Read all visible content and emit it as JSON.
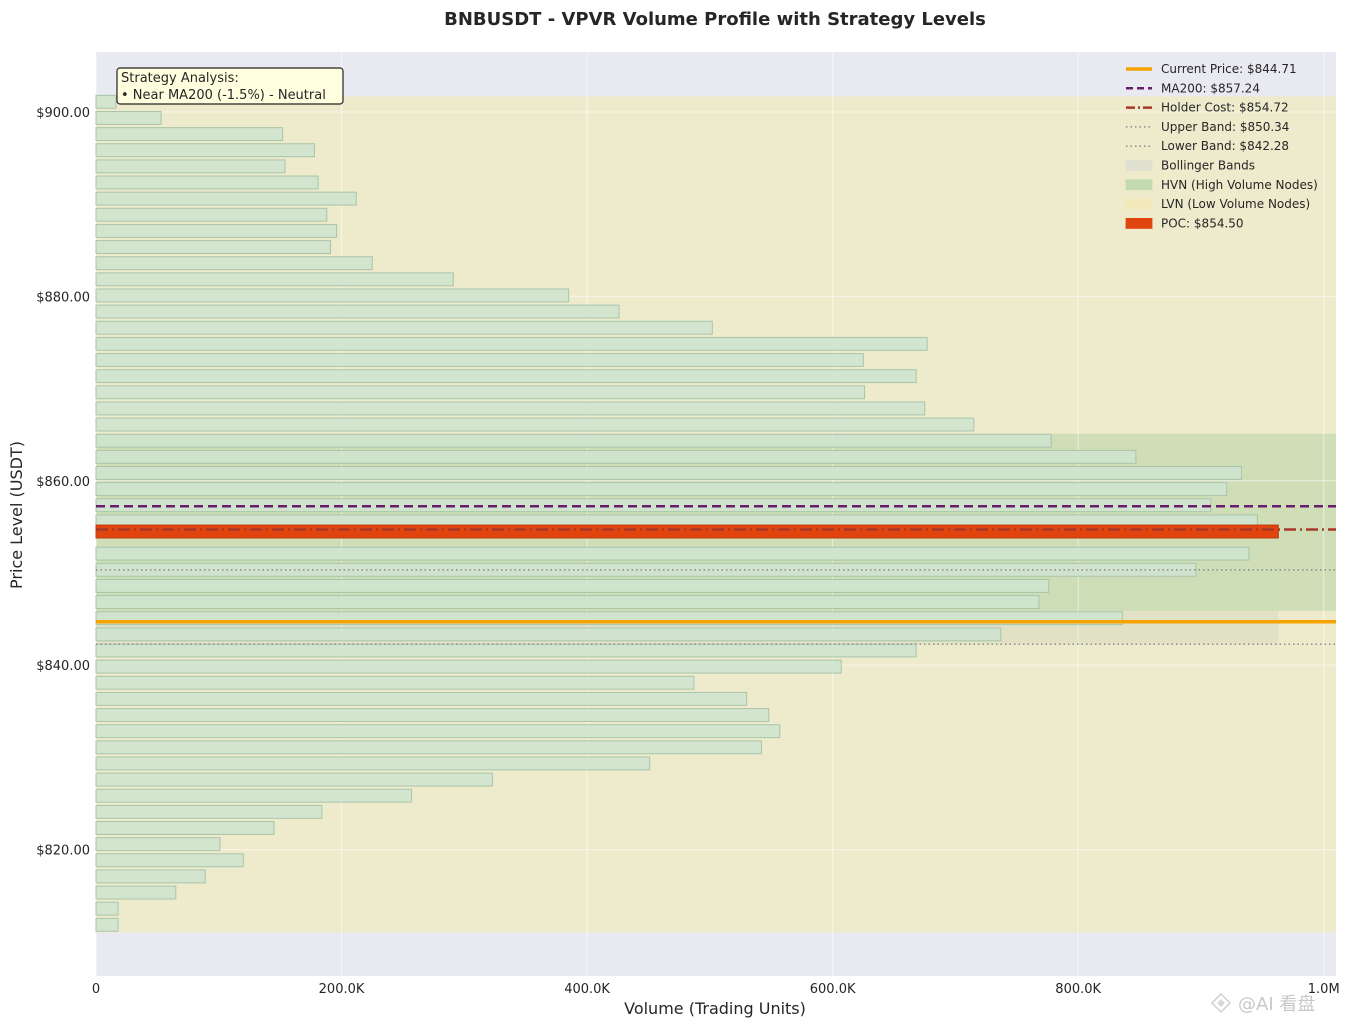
{
  "chart_data": {
    "type": "bar",
    "orientation": "horizontal",
    "title": "BNBUSDT - VPVR Volume Profile with Strategy Levels",
    "xlabel": "Volume (Trading Units)",
    "ylabel": "Price Level (USDT)",
    "xlim": [
      0,
      1010000
    ],
    "ylim": [
      806.3,
      906.5
    ],
    "x_ticks": [
      {
        "value": 0,
        "label": "0"
      },
      {
        "value": 200000,
        "label": "200.0K"
      },
      {
        "value": 400000,
        "label": "400.0K"
      },
      {
        "value": 600000,
        "label": "600.0K"
      },
      {
        "value": 800000,
        "label": "800.0K"
      },
      {
        "value": 1000000,
        "label": "1.0M"
      }
    ],
    "y_ticks": [
      {
        "value": 900,
        "label": "$900.00"
      },
      {
        "value": 880,
        "label": "$880.00"
      },
      {
        "value": 860,
        "label": "$860.00"
      },
      {
        "value": 840,
        "label": "$840.00"
      },
      {
        "value": 820,
        "label": "$820.00"
      }
    ],
    "grid": true,
    "bin_height": 1.75,
    "bins": [
      {
        "price": 901.1,
        "volume": 0
      },
      {
        "price": 899.35,
        "volume": 53000
      },
      {
        "price": 897.6,
        "volume": 152000
      },
      {
        "price": 895.85,
        "volume": 178000
      },
      {
        "price": 894.1,
        "volume": 154000
      },
      {
        "price": 892.35,
        "volume": 181000
      },
      {
        "price": 890.6,
        "volume": 212000
      },
      {
        "price": 888.85,
        "volume": 188000
      },
      {
        "price": 887.1,
        "volume": 196000
      },
      {
        "price": 885.35,
        "volume": 191000
      },
      {
        "price": 883.6,
        "volume": 225000
      },
      {
        "price": 881.85,
        "volume": 291000
      },
      {
        "price": 880.1,
        "volume": 385000
      },
      {
        "price": 878.35,
        "volume": 426000
      },
      {
        "price": 876.6,
        "volume": 502000
      },
      {
        "price": 874.85,
        "volume": 677000
      },
      {
        "price": 873.1,
        "volume": 625000
      },
      {
        "price": 871.35,
        "volume": 668000
      },
      {
        "price": 869.6,
        "volume": 626000
      },
      {
        "price": 867.85,
        "volume": 675000
      },
      {
        "price": 866.1,
        "volume": 715000
      },
      {
        "price": 864.35,
        "volume": 778000
      },
      {
        "price": 862.6,
        "volume": 847000
      },
      {
        "price": 860.85,
        "volume": 933000
      },
      {
        "price": 859.1,
        "volume": 921000
      },
      {
        "price": 857.35,
        "volume": 908000
      },
      {
        "price": 855.6,
        "volume": 946000
      },
      {
        "price": 854.5,
        "volume": 963000,
        "poc": true
      },
      {
        "price": 852.1,
        "volume": 939000
      },
      {
        "price": 850.35,
        "volume": 896000
      },
      {
        "price": 848.6,
        "volume": 776000
      },
      {
        "price": 846.85,
        "volume": 768000
      },
      {
        "price": 845.1,
        "volume": 836000
      },
      {
        "price": 843.35,
        "volume": 737000
      },
      {
        "price": 841.6,
        "volume": 668000
      },
      {
        "price": 839.85,
        "volume": 607000
      },
      {
        "price": 838.1,
        "volume": 487000
      },
      {
        "price": 836.35,
        "volume": 530000
      },
      {
        "price": 834.6,
        "volume": 548000
      },
      {
        "price": 832.85,
        "volume": 557000
      },
      {
        "price": 831.1,
        "volume": 542000
      },
      {
        "price": 829.35,
        "volume": 451000
      },
      {
        "price": 827.6,
        "volume": 323000
      },
      {
        "price": 825.85,
        "volume": 257000
      },
      {
        "price": 824.1,
        "volume": 184000
      },
      {
        "price": 822.35,
        "volume": 145000
      },
      {
        "price": 820.6,
        "volume": 101000
      },
      {
        "price": 818.85,
        "volume": 120000
      },
      {
        "price": 817.1,
        "volume": 89000
      },
      {
        "price": 815.35,
        "volume": 65000
      },
      {
        "price": 813.6,
        "volume": 18000
      },
      {
        "price": 811.85,
        "volume": 18000
      }
    ],
    "lvn_zone": [
      811.0,
      901.7
    ],
    "hvn_zone": [
      845.9,
      865.1
    ],
    "bollinger_bands": {
      "lower": 842.28,
      "upper": 850.34
    },
    "levels": {
      "current_price": 844.71,
      "ma200": 857.24,
      "holder_cost": 854.72,
      "upper_band": 850.34,
      "lower_band": 842.28,
      "poc": 854.5
    },
    "legend": {
      "placement": "top-right",
      "entries": [
        {
          "label": "Current Price: $844.71",
          "style": "solid",
          "color": "#f5a300"
        },
        {
          "label": "MA200: $857.24",
          "style": "dashed",
          "color": "#6a1b6e"
        },
        {
          "label": "Holder Cost: $854.72",
          "style": "dashdot",
          "color": "#a8392a"
        },
        {
          "label": "Upper Band: $850.34",
          "style": "dotted",
          "color": "#8a8a8a"
        },
        {
          "label": "Lower Band: $842.28",
          "style": "dotted",
          "color": "#8a8a8a"
        },
        {
          "label": "Bollinger Bands",
          "style": "patch",
          "color": "#dfe0cf"
        },
        {
          "label": "HVN (High Volume Nodes)",
          "style": "patch",
          "color": "#c3dbae"
        },
        {
          "label": "LVN (Low Volume Nodes)",
          "style": "patch",
          "color": "#f3e8b9"
        },
        {
          "label": "POC: $854.50",
          "style": "patch",
          "color": "#e0450f"
        }
      ]
    },
    "annotation": {
      "lines": [
        "Strategy Analysis:",
        "• Near MA200 (-1.5%) - Neutral"
      ],
      "placement": "top-left"
    }
  },
  "colors": {
    "plot_background": "#e9e9f1",
    "lvn_fill": "#eeebcd",
    "hvn_fill": "#c9dcb1",
    "bar_fill": "#cfe3cf",
    "bar_edge": "#a8c5aa",
    "poc_fill": "#e0450f",
    "annotation_bg": "#ffffe0"
  },
  "watermark": "@AI 看盘"
}
